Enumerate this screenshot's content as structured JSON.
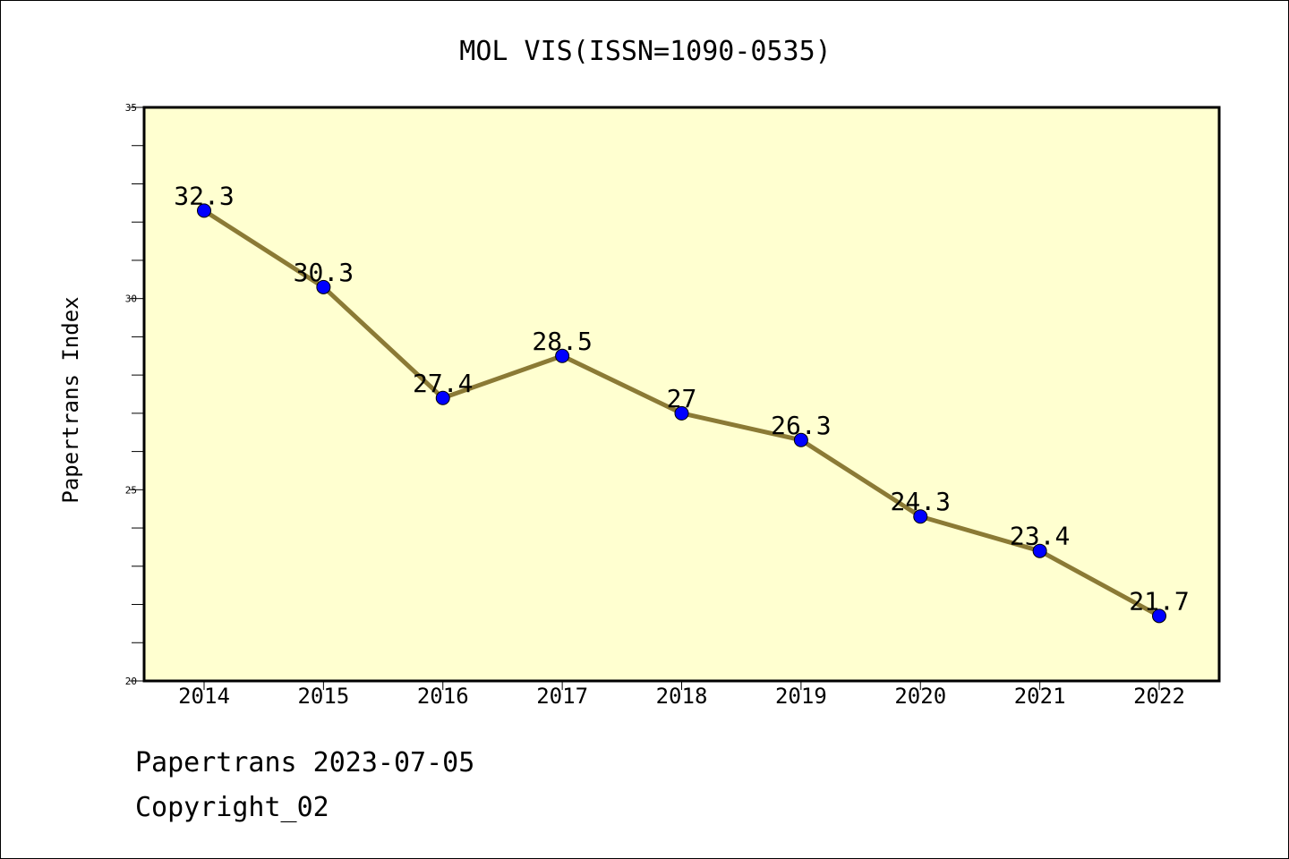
{
  "chart_data": {
    "type": "line",
    "title": "MOL VIS(ISSN=1090-0535)",
    "xlabel": "",
    "ylabel": "Papertrans Index",
    "categories": [
      "2014",
      "2015",
      "2016",
      "2017",
      "2018",
      "2019",
      "2020",
      "2021",
      "2022"
    ],
    "values": [
      32.3,
      30.3,
      27.4,
      28.5,
      27,
      26.3,
      24.3,
      23.4,
      21.7
    ],
    "data_labels": [
      "32.3",
      "30.3",
      "27.4",
      "28.5",
      "27",
      "26.3",
      "24.3",
      "23.4",
      "21.7"
    ],
    "ylim": [
      20,
      35
    ],
    "yticks": [
      20,
      25,
      30,
      35
    ],
    "ytick_labels": [
      "20",
      "25",
      "30",
      "35"
    ],
    "grid": false,
    "legend": "none",
    "colors": {
      "plot_background": "#ffffd0",
      "line": "#8b7a35",
      "marker": "#0000ff"
    }
  },
  "footer": {
    "line1": "Papertrans 2023-07-05",
    "line2": "Copyright_02"
  }
}
